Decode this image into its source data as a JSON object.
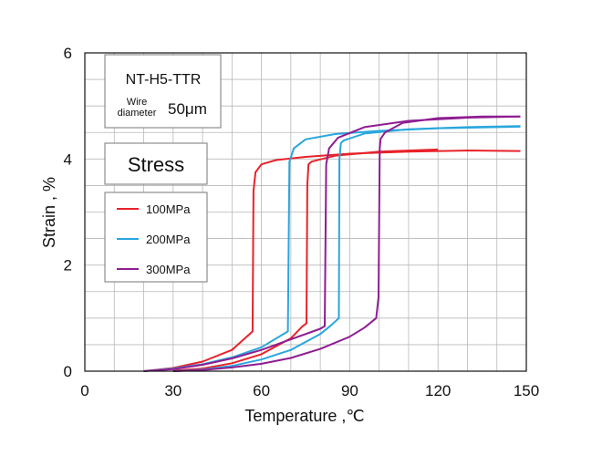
{
  "chart_data": {
    "type": "line",
    "xlabel": "Temperature ,℃",
    "ylabel": "Strain , %",
    "xlim": [
      0,
      150
    ],
    "ylim": [
      0,
      6
    ],
    "xticks": [
      0,
      30,
      60,
      90,
      120,
      150
    ],
    "yticks": [
      0,
      2,
      4,
      6
    ],
    "xgrid_step": 10,
    "ygrid_step": 0.5,
    "grid": true,
    "info_box": {
      "model": "NT-H5-TTR",
      "wire_label_top": "Wire",
      "wire_label_bottom": "diameter",
      "wire_value": "50μm"
    },
    "legend_title": "Stress",
    "legend_placement": "upper-left",
    "series": [
      {
        "name": "100MPa",
        "color": "#e8222a",
        "heating": [
          [
            20,
            0
          ],
          [
            30,
            0.06
          ],
          [
            40,
            0.18
          ],
          [
            50,
            0.4
          ],
          [
            57,
            0.75
          ],
          [
            57.3,
            3.4
          ],
          [
            58,
            3.75
          ],
          [
            60,
            3.9
          ],
          [
            65,
            3.98
          ],
          [
            75,
            4.04
          ],
          [
            90,
            4.1
          ],
          [
            110,
            4.14
          ],
          [
            130,
            4.16
          ],
          [
            148,
            4.15
          ]
        ],
        "cooling": [
          [
            120,
            4.18
          ],
          [
            100,
            4.14
          ],
          [
            85,
            4.06
          ],
          [
            77,
            3.95
          ],
          [
            76,
            3.9
          ],
          [
            75.6,
            3.5
          ],
          [
            75.3,
            0.9
          ],
          [
            74,
            0.85
          ],
          [
            70,
            0.62
          ],
          [
            60,
            0.32
          ],
          [
            50,
            0.15
          ],
          [
            40,
            0.05
          ],
          [
            30,
            0.01
          ]
        ]
      },
      {
        "name": "200MPa",
        "color": "#29a6dd",
        "heating": [
          [
            20,
            0
          ],
          [
            30,
            0.05
          ],
          [
            40,
            0.13
          ],
          [
            50,
            0.26
          ],
          [
            60,
            0.45
          ],
          [
            69,
            0.75
          ],
          [
            69.5,
            3.95
          ],
          [
            71,
            4.2
          ],
          [
            75,
            4.37
          ],
          [
            85,
            4.47
          ],
          [
            100,
            4.53
          ],
          [
            120,
            4.58
          ],
          [
            140,
            4.6
          ],
          [
            148,
            4.61
          ]
        ],
        "cooling": [
          [
            148,
            4.62
          ],
          [
            130,
            4.6
          ],
          [
            110,
            4.56
          ],
          [
            95,
            4.48
          ],
          [
            88,
            4.35
          ],
          [
            87,
            4.3
          ],
          [
            86.5,
            4.0
          ],
          [
            86.3,
            1.0
          ],
          [
            84,
            0.88
          ],
          [
            80,
            0.7
          ],
          [
            70,
            0.4
          ],
          [
            60,
            0.22
          ],
          [
            50,
            0.1
          ],
          [
            40,
            0.03
          ],
          [
            30,
            0
          ]
        ]
      },
      {
        "name": "300MPa",
        "color": "#8e1d91",
        "heating": [
          [
            20,
            0
          ],
          [
            30,
            0.04
          ],
          [
            40,
            0.12
          ],
          [
            50,
            0.24
          ],
          [
            60,
            0.4
          ],
          [
            70,
            0.6
          ],
          [
            80,
            0.8
          ],
          [
            81.5,
            0.85
          ],
          [
            82,
            3.9
          ],
          [
            83,
            4.2
          ],
          [
            86,
            4.4
          ],
          [
            95,
            4.6
          ],
          [
            110,
            4.72
          ],
          [
            130,
            4.78
          ],
          [
            148,
            4.8
          ]
        ],
        "cooling": [
          [
            148,
            4.8
          ],
          [
            135,
            4.8
          ],
          [
            120,
            4.77
          ],
          [
            108,
            4.68
          ],
          [
            102,
            4.5
          ],
          [
            100.5,
            4.38
          ],
          [
            100.2,
            4.2
          ],
          [
            99.8,
            1.4
          ],
          [
            99,
            1.0
          ],
          [
            95,
            0.82
          ],
          [
            90,
            0.65
          ],
          [
            80,
            0.42
          ],
          [
            70,
            0.25
          ],
          [
            60,
            0.14
          ],
          [
            50,
            0.07
          ],
          [
            40,
            0.02
          ],
          [
            30,
            0
          ]
        ]
      }
    ]
  }
}
